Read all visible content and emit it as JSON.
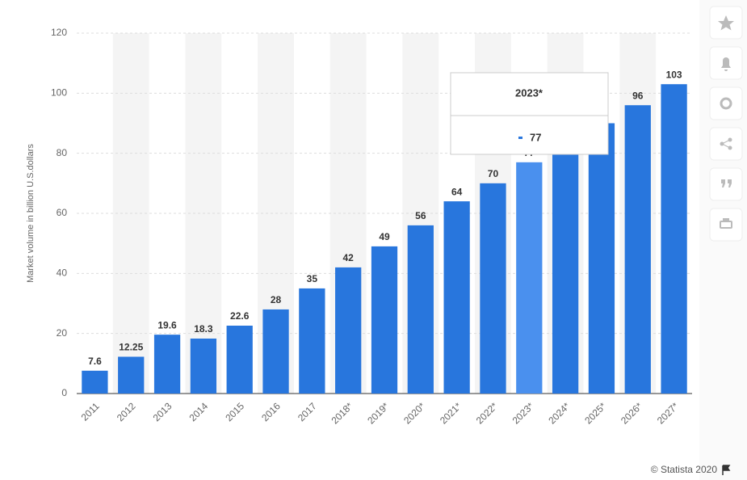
{
  "chart_data": {
    "type": "bar",
    "y_label": "Market volume in billion U.S.dollars",
    "categories": [
      "2011",
      "2012",
      "2013",
      "2014",
      "2015",
      "2016",
      "2017",
      "2018*",
      "2019*",
      "2020*",
      "2021*",
      "2022*",
      "2023*",
      "2024*",
      "2025*",
      "2026*",
      "2027*"
    ],
    "values": [
      7.6,
      12.25,
      19.6,
      18.3,
      22.6,
      28,
      35,
      42,
      49,
      56,
      64,
      70,
      77,
      83,
      90,
      96,
      103
    ],
    "color": "#2876dd",
    "highlight_color": "#4a90ee",
    "ylim": [
      0,
      120
    ],
    "yticks": [
      0,
      20,
      40,
      60,
      80,
      100,
      120
    ],
    "grid": true,
    "tooltip": {
      "title": "2023*",
      "value": 77
    },
    "source": "© Statista 2020"
  }
}
